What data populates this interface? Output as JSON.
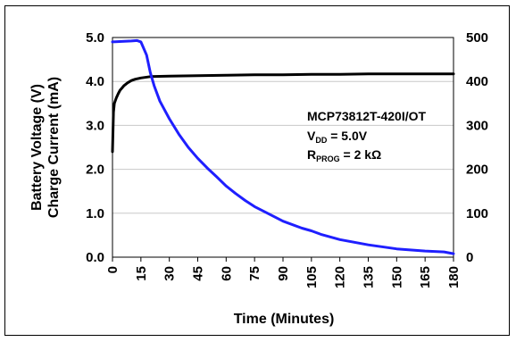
{
  "chart_data": {
    "type": "line",
    "xlabel": "Time (Minutes)",
    "ylabel_left": [
      "Battery Voltage (V)",
      "Charge Current (mA)"
    ],
    "ylabel_right": "",
    "x_ticks": [
      0,
      15,
      30,
      45,
      60,
      75,
      90,
      105,
      120,
      135,
      150,
      165,
      180
    ],
    "xlim": [
      0,
      180
    ],
    "y_left_ticks": [
      "0.0",
      "1.0",
      "2.0",
      "3.0",
      "4.0",
      "5.0"
    ],
    "y_left_lim": [
      0,
      5
    ],
    "y_right_ticks": [
      "0",
      "100",
      "200",
      "300",
      "400",
      "500"
    ],
    "y_right_lim": [
      0,
      500
    ],
    "grid": "horizontal",
    "legend": "none",
    "annotation": {
      "line1": "MCP73812T-420I/OT",
      "line2_main": "V",
      "line2_sub": "DD",
      "line2_rest": " = 5.0V",
      "line3_main": "R",
      "line3_sub": "PROG",
      "line3_rest": " = 2 kΩ"
    },
    "series": [
      {
        "axis": "left",
        "color": "#000000",
        "x": [
          0,
          0.5,
          1,
          2,
          3,
          4,
          5,
          6,
          8,
          10,
          12,
          15,
          20,
          30,
          45,
          60,
          75,
          90,
          105,
          120,
          135,
          150,
          165,
          180
        ],
        "y": [
          2.4,
          3.3,
          3.5,
          3.62,
          3.72,
          3.8,
          3.85,
          3.9,
          3.97,
          4.02,
          4.05,
          4.08,
          4.11,
          4.12,
          4.13,
          4.14,
          4.15,
          4.15,
          4.16,
          4.16,
          4.17,
          4.17,
          4.17,
          4.17
        ]
      },
      {
        "axis": "right",
        "color": "#1f1fff",
        "x": [
          0,
          5,
          10,
          13,
          15,
          18,
          20,
          22,
          25,
          30,
          35,
          40,
          45,
          50,
          55,
          60,
          65,
          70,
          75,
          80,
          90,
          100,
          105,
          110,
          120,
          135,
          150,
          165,
          175,
          180
        ],
        "y": [
          490,
          491,
          492,
          493,
          490,
          460,
          420,
          390,
          355,
          315,
          280,
          250,
          225,
          203,
          183,
          162,
          145,
          129,
          115,
          104,
          82,
          66,
          60,
          52,
          40,
          28,
          19,
          14,
          12,
          8
        ]
      }
    ]
  }
}
